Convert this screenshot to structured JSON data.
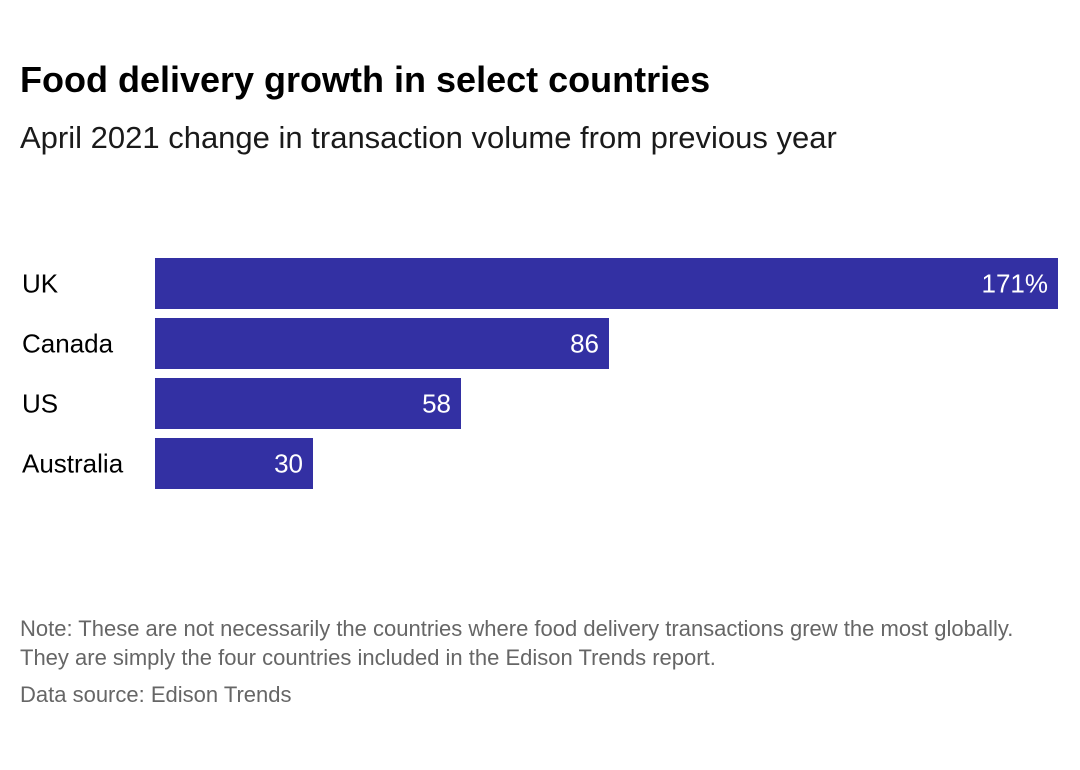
{
  "title": "Food delivery growth in select countries",
  "subtitle": "April 2021 change in transaction volume from previous year",
  "note": "Note: These are not necessarily the countries where food delivery transactions grew the most globally. They are simply the four countries included in the Edison Trends report.",
  "source": "Data source: Edison Trends",
  "colors": {
    "bar": "#3330a3",
    "bar_label": "#ffffff",
    "category_label": "#000000"
  },
  "chart_data": {
    "type": "bar",
    "orientation": "horizontal",
    "categories": [
      "UK",
      "Canada",
      "US",
      "Australia"
    ],
    "values": [
      171,
      86,
      58,
      30
    ],
    "labels": [
      "171%",
      "86",
      "58",
      "30"
    ],
    "unit": "%",
    "xlim": [
      0,
      171
    ],
    "title": "Food delivery growth in select countries",
    "xlabel": "",
    "ylabel": "",
    "grid": false,
    "legend": "none"
  }
}
